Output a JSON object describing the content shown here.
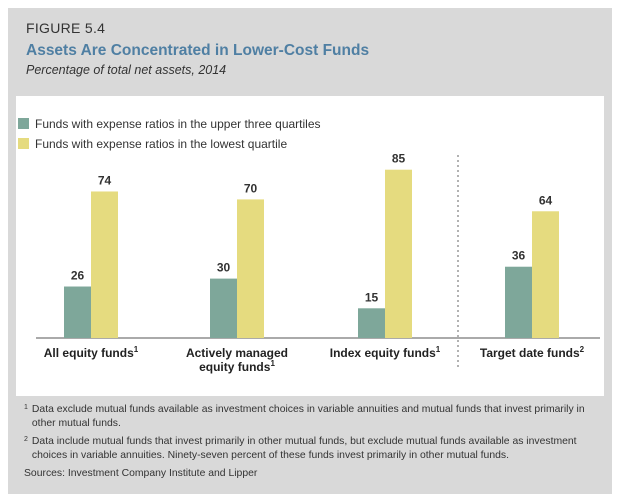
{
  "figure": {
    "label": "FIGURE 5.4",
    "title": "Assets Are Concentrated in Lower-Cost Funds",
    "subtitle": "Percentage of total net assets, 2014"
  },
  "colors": {
    "upper": "#7ea79a",
    "lowest": "#e5db7f",
    "title": "#4f7fa3"
  },
  "chart_data": {
    "type": "bar",
    "categories": [
      {
        "line1": "All equity funds",
        "line2": "",
        "sup": "1"
      },
      {
        "line1": "Actively managed",
        "line2": "equity funds",
        "sup": "1"
      },
      {
        "line1": "Index equity funds",
        "line2": "",
        "sup": "1"
      },
      {
        "line1": "Target date funds",
        "line2": "",
        "sup": "2"
      }
    ],
    "series": [
      {
        "name": "Funds with expense ratios in the upper three quartiles",
        "values": [
          26,
          30,
          15,
          36
        ]
      },
      {
        "name": "Funds with expense ratios in the lowest quartile",
        "values": [
          74,
          70,
          85,
          64
        ]
      }
    ],
    "ylim": [
      0,
      100
    ],
    "xlabel": "",
    "ylabel": "",
    "grid": false,
    "legend_position": "top-left"
  },
  "footnotes": [
    {
      "marker": "1",
      "text": "Data exclude mutual funds available as investment choices in variable annuities and mutual funds that invest primarily in other mutual funds."
    },
    {
      "marker": "2",
      "text": "Data include mutual funds that invest primarily in other mutual funds, but exclude mutual funds available as investment choices in variable annuities. Ninety-seven percent of these funds invest primarily in other mutual funds."
    },
    {
      "marker": "",
      "text": "Sources: Investment Company Institute and Lipper"
    }
  ]
}
